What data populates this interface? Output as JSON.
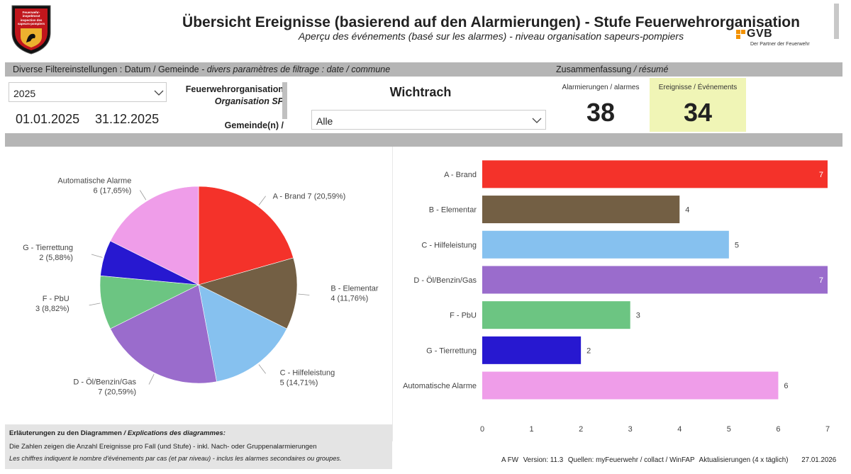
{
  "header": {
    "title": "Übersicht Ereignisse (basierend auf den Alarmierungen) - Stufe Feuerwehrorganisation",
    "subtitle": "Aperçu des événements (basé sur les alarmes) - niveau organisation sapeurs-pompiers",
    "crest_text": [
      "Feuerwehr-",
      "inspektorat",
      "inspection des",
      "sapeurs-pompiers"
    ],
    "gvb_logo": {
      "word": "GVB",
      "tagline": "Der Partner der Feuerwehr",
      "color": "#f39200"
    }
  },
  "filters": {
    "bar_label": "Diverse Filtereinstellungen : Datum / Gemeinde",
    "bar_label_fr": "- divers paramètres de filtrage : date / commune",
    "year": "2025",
    "date_start": "01.01.2025",
    "date_end": "31.12.2025",
    "org_label": "Feuerwehrorganisation",
    "org_label_fr": "Organisation SP",
    "org_value": "Wichtrach",
    "municipality_label": "Gemeinde(n) /",
    "municipality_value": "Alle"
  },
  "summary": {
    "label": "Zusammenfassung",
    "label_fr": "/ résumé",
    "alarms_label": "Alarmierungen / alarmes",
    "alarms_value": "38",
    "events_label": "Ereignisse / Événements",
    "events_value": "34",
    "events_bg": "#f0f5b6"
  },
  "chart_data": [
    {
      "type": "pie",
      "title": "",
      "total": 34,
      "slices": [
        {
          "label": "A - Brand",
          "value": 7,
          "pct": "20,59%",
          "color": "#f4322a"
        },
        {
          "label": "B - Elementar",
          "value": 4,
          "pct": "11,76%",
          "color": "#735f44"
        },
        {
          "label": "C - Hilfeleistung",
          "value": 5,
          "pct": "14,71%",
          "color": "#86c1ef"
        },
        {
          "label": "D - Öl/Benzin/Gas",
          "value": 7,
          "pct": "20,59%",
          "color": "#9a6ccc"
        },
        {
          "label": "F - PbU",
          "value": 3,
          "pct": "8,82%",
          "color": "#6cc582"
        },
        {
          "label": "G - Tierrettung",
          "value": 2,
          "pct": "5,88%",
          "color": "#2718d0"
        },
        {
          "label": "Automatische Alarme",
          "value": 6,
          "pct": "17,65%",
          "color": "#ef9de9"
        }
      ]
    },
    {
      "type": "bar",
      "orientation": "horizontal",
      "categories": [
        "A - Brand",
        "B - Elementar",
        "C - Hilfeleistung",
        "D - Öl/Benzin/Gas",
        "F - PbU",
        "G - Tierrettung",
        "Automatische Alarme"
      ],
      "values": [
        7,
        4,
        5,
        7,
        3,
        2,
        6
      ],
      "colors": [
        "#f4322a",
        "#735f44",
        "#86c1ef",
        "#9a6ccc",
        "#6cc582",
        "#2718d0",
        "#ef9de9"
      ],
      "xlim": [
        0,
        7
      ],
      "xticks": [
        0,
        1,
        2,
        3,
        4,
        5,
        6,
        7
      ],
      "title": "",
      "xlabel": "",
      "ylabel": ""
    }
  ],
  "notes": {
    "heading": "Erläuterungen zu den Diagrammen",
    "heading_fr": "/ Explications des diagrammes:",
    "line_de": "Die Zahlen zeigen die Anzahl Ereignisse pro Fall (und Stufe) - inkl. Nach- oder Gruppenalarmierungen",
    "line_fr": "Les chiffres indiquent le nombre d'événements par cas (et par niveau) -   inclus les alarmes secondaires ou groupes."
  },
  "footer": {
    "app": "A FW",
    "version": "Version: 11.3",
    "sources": "Quellen: myFeuerwehr / collact / WinFAP",
    "updates": "Aktualisierungen (4 x täglich)",
    "date": "27.01.2026"
  }
}
